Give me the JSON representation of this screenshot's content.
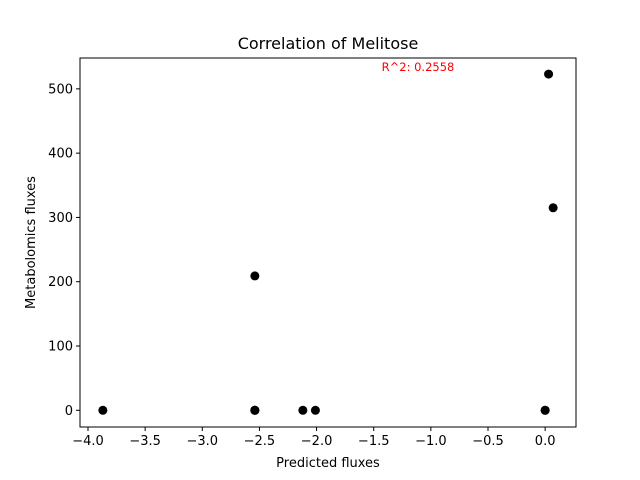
{
  "chart_data": {
    "type": "scatter",
    "title": "Correlation of Melitose",
    "xlabel": "Predicted fluxes",
    "ylabel": "Metabolomics fluxes",
    "xlim": [
      -4.07,
      0.27
    ],
    "ylim": [
      -26,
      548
    ],
    "xticks": [
      -4.0,
      -3.5,
      -3.0,
      -2.5,
      -2.0,
      -1.5,
      -1.0,
      -0.5,
      0.0
    ],
    "xtick_labels": [
      "−4.0",
      "−3.5",
      "−3.0",
      "−2.5",
      "−2.0",
      "−1.5",
      "−1.0",
      "−0.5",
      "0.0"
    ],
    "yticks": [
      0,
      100,
      200,
      300,
      400,
      500
    ],
    "ytick_labels": [
      "0",
      "100",
      "200",
      "300",
      "400",
      "500"
    ],
    "grid": false,
    "marker_color": "#000000",
    "points": [
      {
        "x": -3.87,
        "y": 0
      },
      {
        "x": -2.54,
        "y": 0
      },
      {
        "x": -2.54,
        "y": 0
      },
      {
        "x": -2.54,
        "y": 0
      },
      {
        "x": -2.54,
        "y": 209
      },
      {
        "x": -2.12,
        "y": 0
      },
      {
        "x": -2.01,
        "y": 0
      },
      {
        "x": 0.0,
        "y": 0
      },
      {
        "x": 0.0,
        "y": 0
      },
      {
        "x": 0.03,
        "y": 523
      },
      {
        "x": 0.07,
        "y": 315
      }
    ],
    "annotation": {
      "text": "R^2: 0.2558",
      "color": "#ff0000",
      "position": "top-center"
    }
  }
}
